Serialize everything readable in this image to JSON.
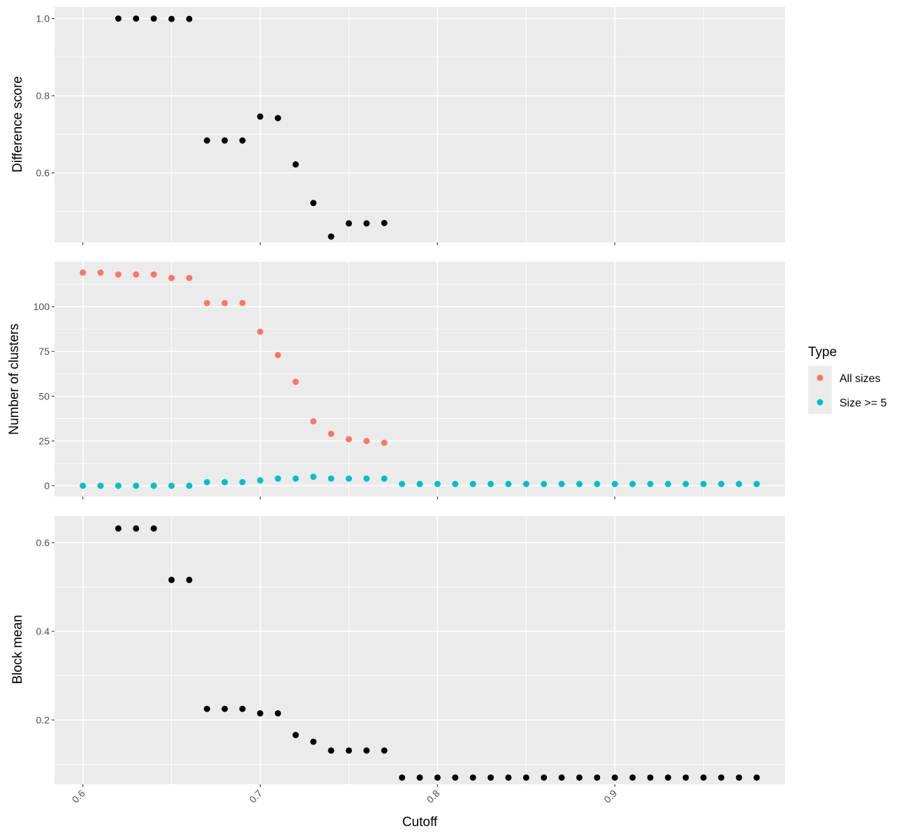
{
  "chart_data": [
    {
      "type": "scatter",
      "panel": "top",
      "ylabel": "Difference score",
      "ylim": [
        0.42,
        1.03
      ],
      "yticks": [
        0.6,
        0.8,
        1.0
      ],
      "ytick_labels": [
        "0.6",
        "0.8",
        "1.0"
      ],
      "xlim": [
        0.584,
        0.996
      ],
      "grid": true,
      "series": [
        {
          "color": "#000000",
          "x": [
            0.62,
            0.63,
            0.64,
            0.65,
            0.66,
            0.67,
            0.68,
            0.69,
            0.7,
            0.71,
            0.72,
            0.73,
            0.74,
            0.75,
            0.76,
            0.77
          ],
          "y": [
            1.0,
            1.0,
            1.0,
            0.999,
            0.999,
            0.684,
            0.684,
            0.684,
            0.746,
            0.742,
            0.622,
            0.522,
            0.435,
            0.469,
            0.469,
            0.47
          ]
        }
      ]
    },
    {
      "type": "scatter",
      "panel": "middle",
      "ylabel": "Number of clusters",
      "ylim": [
        -6,
        125
      ],
      "yticks": [
        0,
        25,
        50,
        75,
        100
      ],
      "ytick_labels": [
        "0",
        "25",
        "50",
        "75",
        "100"
      ],
      "xlim": [
        0.584,
        0.996
      ],
      "grid": true,
      "legend": {
        "title": "Type",
        "placement": "right"
      },
      "series": [
        {
          "name": "All sizes",
          "color": "#F8766D",
          "x": [
            0.6,
            0.61,
            0.62,
            0.63,
            0.64,
            0.65,
            0.66,
            0.67,
            0.68,
            0.69,
            0.7,
            0.71,
            0.72,
            0.73,
            0.74,
            0.75,
            0.76,
            0.77
          ],
          "y": [
            119,
            119,
            118,
            118,
            118,
            116,
            116,
            102,
            102,
            102,
            86,
            73,
            58,
            36,
            29,
            26,
            25,
            24
          ]
        },
        {
          "name": "Size >= 5",
          "color": "#00BFC4",
          "x": [
            0.6,
            0.61,
            0.62,
            0.63,
            0.64,
            0.65,
            0.66,
            0.67,
            0.68,
            0.69,
            0.7,
            0.71,
            0.72,
            0.73,
            0.74,
            0.75,
            0.76,
            0.77,
            0.78,
            0.79,
            0.8,
            0.81,
            0.82,
            0.83,
            0.84,
            0.85,
            0.86,
            0.87,
            0.88,
            0.89,
            0.9,
            0.91,
            0.92,
            0.93,
            0.94,
            0.95,
            0.96,
            0.97,
            0.98
          ],
          "y": [
            0,
            0,
            0,
            0,
            0,
            0,
            0,
            2,
            2,
            2,
            3,
            4,
            4,
            5,
            4,
            4,
            4,
            4,
            1,
            1,
            1,
            1,
            1,
            1,
            1,
            1,
            1,
            1,
            1,
            1,
            1,
            1,
            1,
            1,
            1,
            1,
            1,
            1,
            1
          ]
        }
      ]
    },
    {
      "type": "scatter",
      "panel": "bottom",
      "ylabel": "Block mean",
      "xlabel": "Cutoff",
      "ylim": [
        0.055,
        0.66
      ],
      "yticks": [
        0.2,
        0.4,
        0.6
      ],
      "ytick_labels": [
        "0.2",
        "0.4",
        "0.6"
      ],
      "xlim": [
        0.584,
        0.996
      ],
      "xticks": [
        0.6,
        0.7,
        0.8,
        0.9
      ],
      "xtick_labels": [
        "0.6",
        "0.7",
        "0.8",
        "0.9"
      ],
      "grid": true,
      "series": [
        {
          "color": "#000000",
          "x": [
            0.62,
            0.63,
            0.64,
            0.65,
            0.66,
            0.67,
            0.68,
            0.69,
            0.7,
            0.71,
            0.72,
            0.73,
            0.74,
            0.75,
            0.76,
            0.77,
            0.78,
            0.79,
            0.8,
            0.81,
            0.82,
            0.83,
            0.84,
            0.85,
            0.86,
            0.87,
            0.88,
            0.89,
            0.9,
            0.91,
            0.92,
            0.93,
            0.94,
            0.95,
            0.96,
            0.97,
            0.98
          ],
          "y": [
            0.632,
            0.632,
            0.632,
            0.516,
            0.516,
            0.225,
            0.225,
            0.225,
            0.215,
            0.215,
            0.166,
            0.151,
            0.131,
            0.131,
            0.131,
            0.131,
            0.07,
            0.07,
            0.07,
            0.07,
            0.07,
            0.07,
            0.07,
            0.07,
            0.07,
            0.07,
            0.07,
            0.07,
            0.07,
            0.07,
            0.07,
            0.07,
            0.07,
            0.07,
            0.07,
            0.07,
            0.07
          ]
        }
      ]
    }
  ],
  "colors": {
    "panel_background": "#EBEBEB",
    "grid": "#FFFFFF",
    "axis_ticks": "#333333"
  }
}
